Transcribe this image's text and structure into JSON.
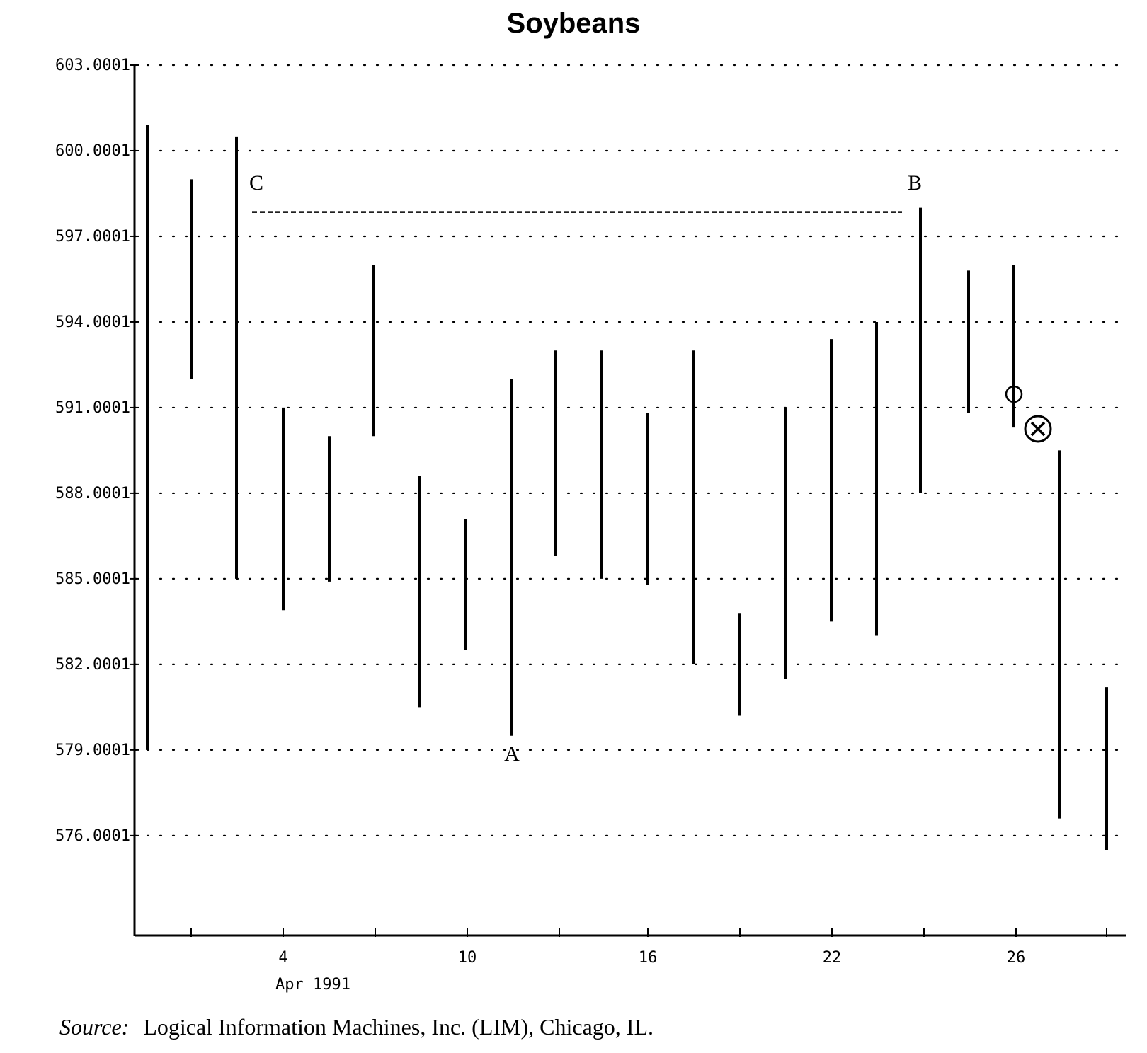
{
  "chart_data": {
    "type": "bar",
    "subtype": "high-low range bars",
    "title": "Soybeans",
    "xlabel": "Apr 1991",
    "ylabel": "",
    "ylim": [
      572.5,
      603.0001
    ],
    "x_range": [
      0,
      28.5
    ],
    "y_ticks": [
      603.0001,
      600.0001,
      597.0001,
      594.0001,
      591.0001,
      588.0001,
      585.0001,
      582.0001,
      579.0001,
      576.0001
    ],
    "y_tick_labels": [
      "603.0001",
      "600.0001",
      "597.0001",
      "594.0001",
      "591.0001",
      "588.0001",
      "585.0001",
      "582.0001",
      "579.0001",
      "576.0001"
    ],
    "x_ticks": [
      2,
      4,
      7,
      10,
      13,
      16,
      19,
      22,
      25,
      26,
      28.5
    ],
    "x_tick_labels": [
      {
        "x": 4,
        "label": "4"
      },
      {
        "x": 10,
        "label": "10"
      },
      {
        "x": 16,
        "label": "16"
      },
      {
        "x": 22,
        "label": "22"
      },
      {
        "x": 26,
        "label": "26"
      }
    ],
    "grid": true,
    "bars": [
      {
        "x": 0.35,
        "high": 600.9,
        "low": 579.0
      },
      {
        "x": 1.85,
        "high": 599.0,
        "low": 592.0
      },
      {
        "x": 3.35,
        "high": 600.5,
        "low": 585.0
      },
      {
        "x": 4.85,
        "high": 591.0,
        "low": 583.9
      },
      {
        "x": 6.35,
        "high": 590.0,
        "low": 584.9
      },
      {
        "x": 7.85,
        "high": 596.0,
        "low": 590.0
      },
      {
        "x": 9.35,
        "high": 588.6,
        "low": 580.5
      },
      {
        "x": 10.85,
        "high": 587.1,
        "low": 582.5
      },
      {
        "x": 12.35,
        "high": 592.0,
        "low": 579.5
      },
      {
        "x": 13.85,
        "high": 593.0,
        "low": 585.8
      },
      {
        "x": 15.35,
        "high": 593.0,
        "low": 585.0
      },
      {
        "x": 16.85,
        "high": 590.8,
        "low": 584.8
      },
      {
        "x": 18.35,
        "high": 593.0,
        "low": 582.0
      },
      {
        "x": 19.85,
        "high": 583.8,
        "low": 580.2
      },
      {
        "x": 21.35,
        "high": 591.0,
        "low": 581.5
      },
      {
        "x": 22.85,
        "high": 593.4,
        "low": 583.5
      },
      {
        "x": 24.35,
        "high": 594.0,
        "low": 583.0
      },
      {
        "x": 25.85,
        "high": 598.0,
        "low": 588.0
      },
      {
        "x": 27.35,
        "high": 595.8,
        "low": 590.8
      },
      {
        "x": 28.85,
        "high": 596.0,
        "low": 590.3
      },
      {
        "x": 30.35,
        "high": 589.5,
        "low": 576.6
      },
      {
        "x": 31.85,
        "high": 581.2,
        "low": 575.5
      }
    ],
    "annotations": [
      {
        "text": "C",
        "x": 3.8,
        "y": 598.5
      },
      {
        "text": "B",
        "x": 25.8,
        "y": 598.5
      },
      {
        "text": "A",
        "x": 12.35,
        "y": 578.2
      }
    ],
    "reference_line": {
      "style": "dashed",
      "y": 598.0,
      "x_start": 3.8,
      "x_end": 25.6
    },
    "markers": [
      {
        "symbol": "circle",
        "x": 28.9,
        "y": 591.5
      },
      {
        "symbol": "circled-x",
        "x": 29.7,
        "y": 590.3
      }
    ]
  },
  "source": {
    "label": "Source:",
    "text": "Logical Information Machines, Inc. (LIM), Chicago, IL."
  }
}
